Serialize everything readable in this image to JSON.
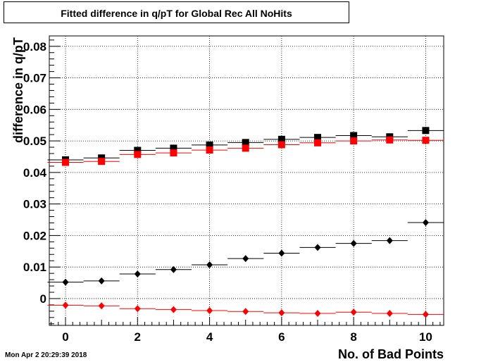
{
  "chart_data": {
    "type": "scatter",
    "title": "Fitted difference in q/pT for Global Rec All NoHits",
    "xlabel": "No. of Bad Points",
    "ylabel": "difference in q/pT",
    "xlim": [
      -0.45,
      10.5
    ],
    "ylim": [
      -0.0085,
      0.0833
    ],
    "x_ticks": [
      "0",
      "2",
      "4",
      "6",
      "8",
      "10"
    ],
    "y_ticks": [
      "0",
      "0.01",
      "0.02",
      "0.03",
      "0.04",
      "0.05",
      "0.06",
      "0.07",
      "0.08"
    ],
    "grid": true,
    "x_error_halfwidth": 0.5,
    "series": [
      {
        "marker": "square",
        "color": "#000000",
        "x": [
          0,
          1,
          2,
          3,
          4,
          5,
          6,
          7,
          8,
          9,
          10
        ],
        "values": [
          0.044,
          0.0446,
          0.047,
          0.0477,
          0.0487,
          0.0495,
          0.0505,
          0.0511,
          0.0517,
          0.0513,
          0.0533
        ]
      },
      {
        "marker": "square",
        "color": "#ff0000",
        "x": [
          0,
          1,
          2,
          3,
          4,
          5,
          6,
          7,
          8,
          9,
          10
        ],
        "values": [
          0.0432,
          0.0435,
          0.0457,
          0.0462,
          0.0471,
          0.0477,
          0.0488,
          0.0494,
          0.05,
          0.0503,
          0.0502
        ]
      },
      {
        "marker": "diamond",
        "color": "#000000",
        "x": [
          0,
          1,
          2,
          3,
          4,
          5,
          6,
          7,
          8,
          9,
          10
        ],
        "values": [
          0.0052,
          0.0056,
          0.0078,
          0.0092,
          0.0107,
          0.0127,
          0.0144,
          0.0162,
          0.0175,
          0.0184,
          0.0241
        ]
      },
      {
        "marker": "diamond",
        "color": "#ff0000",
        "x": [
          0,
          1,
          2,
          3,
          4,
          5,
          6,
          7,
          8,
          9,
          10
        ],
        "values": [
          -0.0021,
          -0.0023,
          -0.0032,
          -0.0035,
          -0.0038,
          -0.0041,
          -0.0045,
          -0.0047,
          -0.0043,
          -0.0047,
          -0.005
        ]
      }
    ]
  },
  "timestamp": "Mon Apr  2 20:29:39 2018"
}
